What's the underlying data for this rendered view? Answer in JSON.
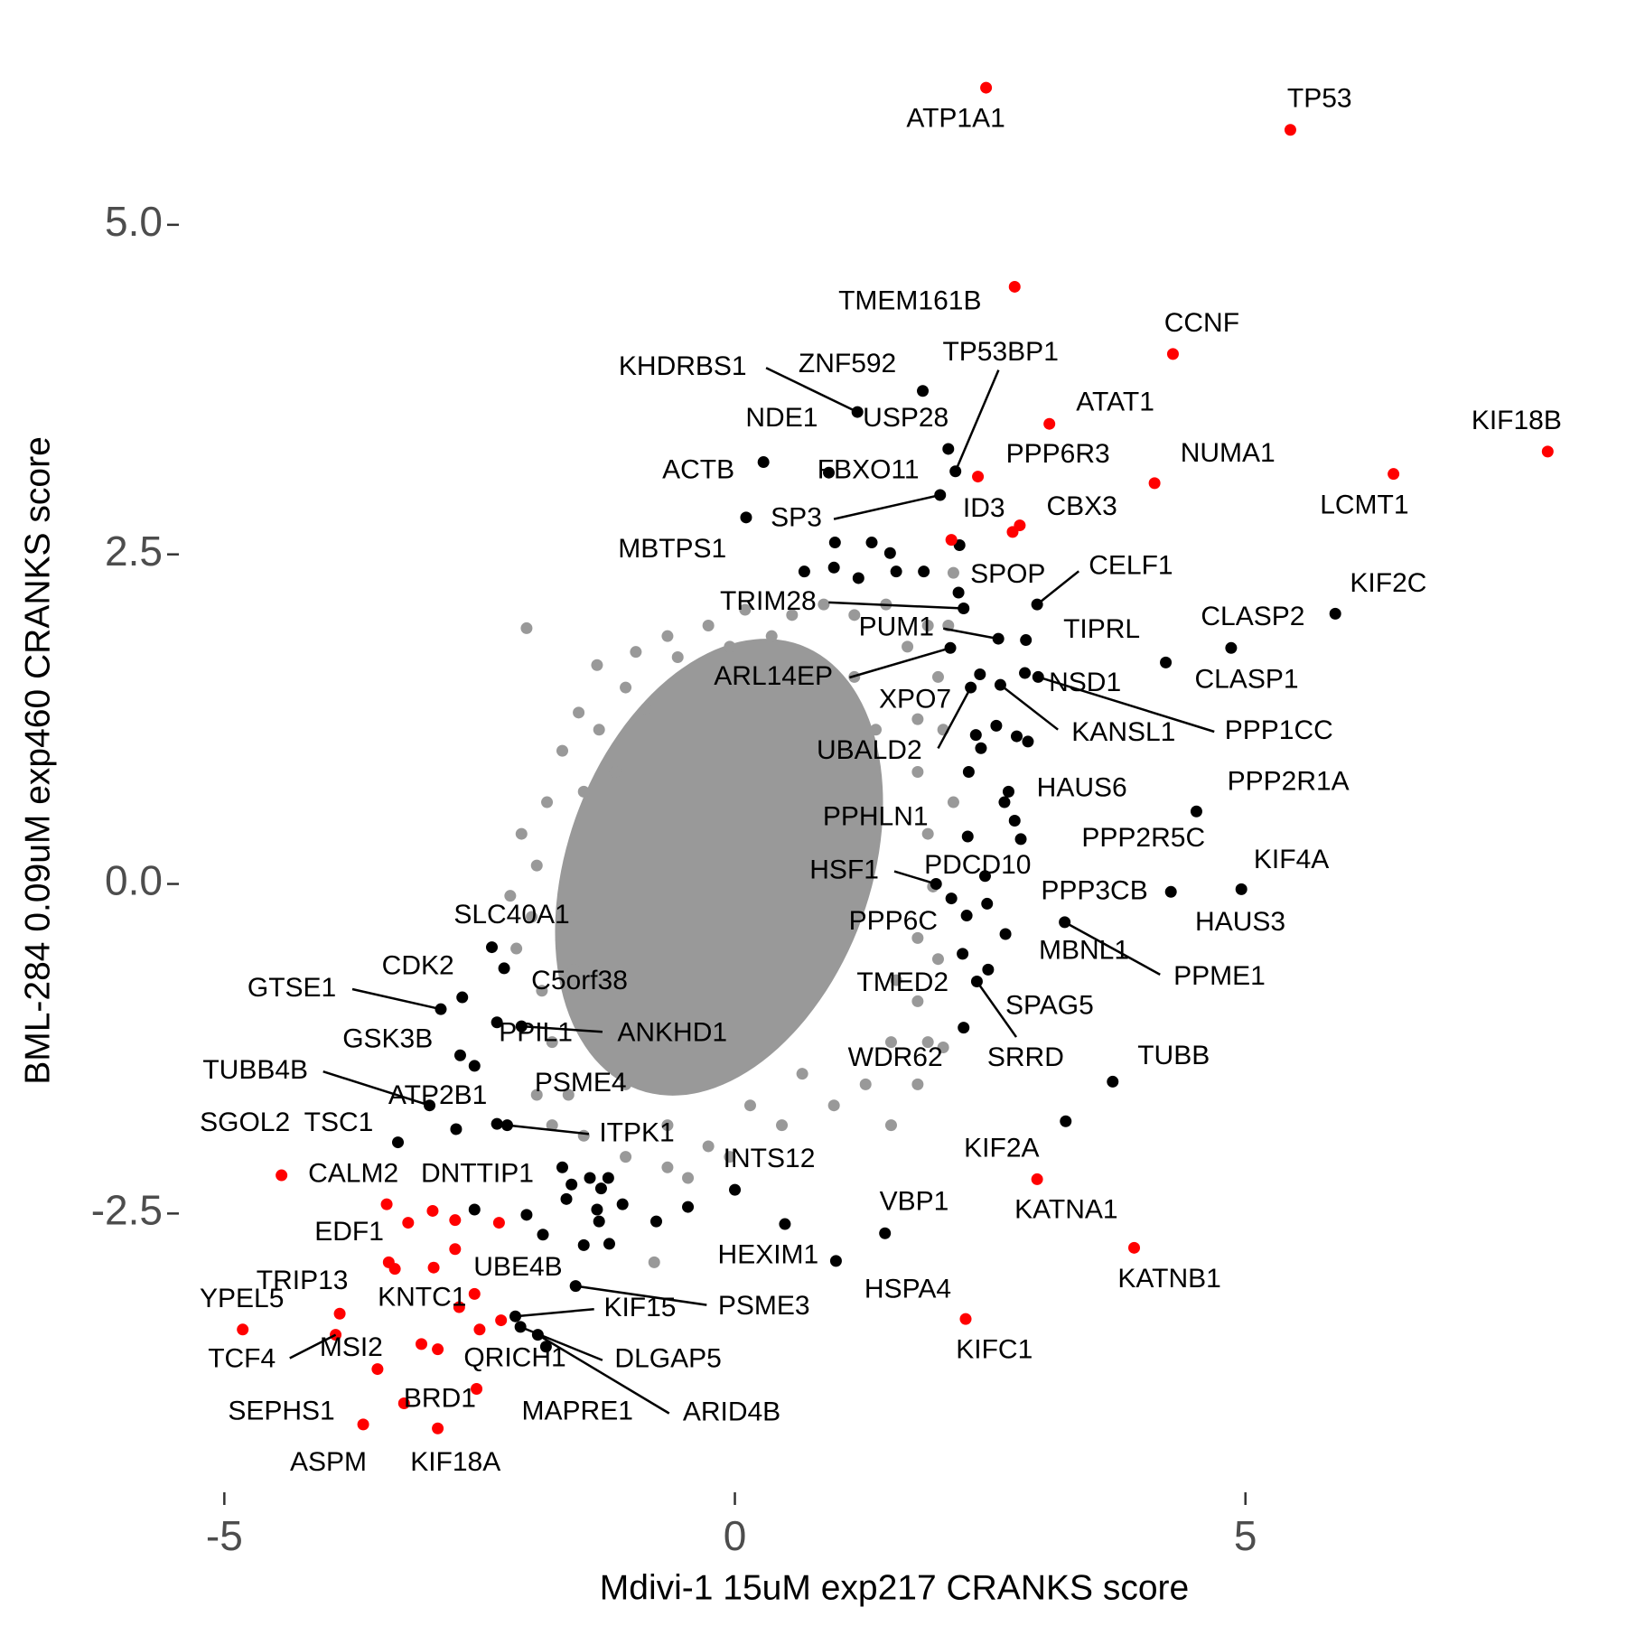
{
  "chart_data": {
    "type": "scatter",
    "x_label": "Mdivi-1 15uM exp217 CRANKS score",
    "y_label": "BML-284 0.09uM exp460 CRANKS score",
    "xlim": [
      -5.41,
      8.32
    ],
    "ylim": [
      -4.56,
      6.39
    ],
    "xticks": [
      -5,
      0,
      5
    ],
    "yticks": [
      -2.5,
      {
        "value": 0,
        "label": "0.0"
      },
      2.5,
      {
        "value": 5,
        "label": "5.0"
      }
    ],
    "grid": false,
    "series": [
      {
        "color": "#999999",
        "x": [
          -2.04,
          -1.35,
          -1.53,
          -1.69,
          -1.84,
          -1.94,
          -1.99,
          -2.14,
          -1.89,
          -1.79,
          -1.63,
          -1.48,
          -1.07,
          -0.79,
          -0.66,
          -0.05,
          0.46,
          0.97,
          1.53,
          2.04,
          1.79,
          1.79,
          1.94,
          1.89,
          1.79,
          1.79,
          1.99,
          1.89,
          1.69,
          1.48,
          1.17,
          0.87,
          0.56,
          0.1,
          -0.26,
          -0.66,
          -0.97,
          -1.07,
          -1.33,
          2.14,
          2.09,
          2.04,
          2.14,
          1.53,
          -2.09,
          -2.2,
          -1.94,
          -1.79,
          -0.46,
          -0.26,
          0.15,
          0.66,
          1.28,
          1.58,
          -0.56,
          -0.05,
          0.36,
          0.56,
          -0.87,
          -1.17,
          -1.48,
          -1.63,
          -1.58,
          -1.38,
          -1.07,
          -0.66,
          1.79,
          1.89,
          1.99,
          1.38,
          1.17
        ],
        "y": [
          1.94,
          1.66,
          1.3,
          1.01,
          0.62,
          0.14,
          -0.25,
          -0.49,
          -0.81,
          -1.2,
          -1.6,
          -1.91,
          -2.07,
          -2.87,
          -2.15,
          -2.07,
          -1.83,
          -1.68,
          -1.83,
          -1.24,
          -0.89,
          -0.41,
          -0.02,
          0.38,
          0.85,
          1.25,
          1.57,
          1.96,
          1.8,
          2.12,
          2.04,
          2.12,
          2.04,
          2.08,
          1.96,
          1.88,
          1.76,
          1.49,
          1.17,
          2.36,
          1.96,
          1.17,
          0.62,
          -1.2,
          0.38,
          -0.09,
          -1.6,
          -1.83,
          -2.23,
          -1.99,
          -1.68,
          -1.44,
          -1.52,
          -0.73,
          1.72,
          1.8,
          1.88,
          1.64,
          1.33,
          0.85,
          0.7,
          -0.25,
          -0.65,
          -1.12,
          -1.52,
          -1.83,
          -1.52,
          -1.2,
          -0.57,
          1.17,
          1.57
        ]
      },
      {
        "color": "#000000",
        "x": [
          1.2,
          1.84,
          2.09,
          0.28,
          2.16,
          0.11,
          0.92,
          2.01,
          0.98,
          2.2,
          2.96,
          2.24,
          2.85,
          4.86,
          5.88,
          2.58,
          2.11,
          4.22,
          2.84,
          2.4,
          2.97,
          2.6,
          2.31,
          2.68,
          4.52,
          2.28,
          2.8,
          4.96,
          1.97,
          2.45,
          4.27,
          2.47,
          2.27,
          3.23,
          2.65,
          2.23,
          2.48,
          2.37,
          2.24,
          3.7,
          3.24,
          0.0,
          1.47,
          0.49,
          0.99,
          -2.38,
          -2.67,
          -2.26,
          -2.88,
          -2.33,
          -2.09,
          -2.69,
          -2.99,
          -2.73,
          -2.33,
          -2.23,
          -3.3,
          -1.56,
          -2.15,
          -2.1,
          -1.93,
          -1.85,
          0.97,
          1.21,
          1.34,
          1.52,
          1.58,
          1.85,
          0.68,
          2.19,
          2.36,
          2.56,
          2.76,
          2.87,
          2.41,
          2.29,
          2.64,
          2.74,
          2.12,
          -1.69,
          -1.42,
          -1.24,
          -1.6,
          -1.31,
          -1.65,
          -1.35,
          -1.1,
          -0.77,
          -0.46,
          -2.04,
          -1.88,
          -1.33,
          -1.23,
          -1.48,
          -2.55,
          -2.55
        ],
        "y": [
          3.58,
          3.74,
          3.3,
          3.2,
          3.13,
          2.78,
          3.12,
          2.95,
          2.59,
          2.57,
          2.12,
          2.09,
          1.85,
          1.79,
          2.05,
          1.86,
          1.79,
          1.68,
          1.6,
          1.59,
          1.57,
          1.51,
          1.49,
          0.7,
          0.55,
          0.36,
          0.34,
          -0.04,
          0.0,
          0.06,
          -0.06,
          -0.15,
          -0.24,
          -0.29,
          -0.38,
          -0.53,
          -0.65,
          -0.74,
          -1.09,
          -1.5,
          -1.8,
          -2.32,
          -2.65,
          -2.58,
          -2.86,
          -0.48,
          -0.86,
          -0.64,
          -0.95,
          -1.05,
          -1.08,
          -1.3,
          -1.68,
          -1.86,
          -1.82,
          -1.83,
          -1.96,
          -3.05,
          -3.28,
          -3.36,
          -3.42,
          -3.51,
          2.4,
          2.32,
          2.59,
          2.51,
          2.37,
          2.37,
          2.37,
          2.21,
          1.13,
          1.2,
          1.12,
          1.08,
          1.03,
          0.85,
          0.62,
          0.48,
          -0.11,
          -2.15,
          -2.23,
          -2.23,
          -2.28,
          -2.31,
          -2.39,
          -2.47,
          -2.43,
          -2.56,
          -2.45,
          -2.51,
          -2.66,
          -2.56,
          -2.73,
          -2.74,
          -2.47,
          -1.38
        ],
        "labels": [
          "KHDRBS1",
          "ZNF592",
          "USP28",
          "NDE1",
          "TP53BP1",
          "ACTB",
          "FBXO11",
          "SP3",
          "MBTPS1",
          "SPOP",
          "CELF1",
          "TRIM28",
          "TIPRL",
          "CLASP2",
          "KIF2C",
          "PUM1",
          "ARL14EP",
          "CLASP1",
          "NSD1",
          "XPO7",
          "PPP1CC",
          "KANSL1",
          "UBALD2",
          "HAUS6",
          "PPP2R1A",
          "PPHLN1",
          "PPP2R5C",
          "KIF4A",
          "HSF1",
          "PDCD10",
          "HAUS3",
          "PPP3CB",
          "PPP6C",
          "PPME1",
          "MBNL1",
          "TMED2",
          "SPAG5",
          "SRRD",
          "WDR62",
          "TUBB",
          "KIF2A",
          "INTS12",
          "VBP1",
          "HEXIM1",
          "HSPA4",
          "SLC40A1",
          "CDK2",
          "C5orf38",
          "GTSE1",
          "PPIL1",
          "ANKHD1",
          "GSK3B",
          "TUBB4B",
          "ATP2B1",
          "PSME4",
          "ITPK1",
          "TSC1",
          "PSME3",
          "KIF15",
          "DLGAP5",
          "ARID4B",
          "MAPRE1",
          null,
          null,
          null,
          null,
          null,
          null,
          null,
          null,
          null,
          null,
          null,
          null,
          null,
          null,
          null,
          null,
          null,
          null,
          null,
          null,
          null,
          null,
          null,
          null,
          null,
          null,
          null,
          null,
          null,
          null,
          null,
          null,
          null,
          null
        ]
      },
      {
        "color": "#ff0000",
        "x": [
          2.46,
          5.44,
          2.74,
          4.29,
          3.08,
          7.96,
          2.38,
          4.11,
          6.45,
          2.79,
          2.12,
          2.96,
          3.91,
          2.26,
          -4.44,
          -3.41,
          -2.31,
          -3.39,
          -2.55,
          -2.7,
          -3.87,
          -3.91,
          -4.82,
          -2.29,
          -3.07,
          -3.5,
          -3.24,
          -3.64,
          -2.91,
          2.72,
          -3.2,
          -2.96,
          -2.74,
          -2.74,
          -3.33,
          -2.95,
          -2.5,
          -2.91,
          -2.53
        ],
        "y": [
          6.04,
          5.72,
          4.53,
          4.02,
          3.49,
          3.28,
          3.09,
          3.04,
          3.11,
          2.72,
          2.61,
          -2.24,
          -2.76,
          -3.3,
          -2.21,
          -2.43,
          -2.57,
          -2.87,
          -3.11,
          -3.21,
          -3.26,
          -3.42,
          -3.38,
          -3.31,
          -3.49,
          -3.68,
          -3.94,
          -4.1,
          -4.13,
          2.67,
          -2.57,
          -2.48,
          -2.55,
          -2.77,
          -2.92,
          -2.91,
          -3.38,
          -3.53,
          -3.83
        ],
        "labels": [
          "ATP1A1",
          "TP53",
          "TMEM161B",
          "CCNF",
          "ATAT1",
          "KIF18B",
          "PPP6R3",
          "NUMA1",
          "LCMT1",
          "CBX3",
          "ID3",
          "KATNA1",
          "KATNB1",
          "KIFC1",
          "CALM2",
          "SGOL2",
          "DNTTIP1",
          "EDF1",
          "UBE4B",
          "KNTC1",
          "TRIP13",
          "TCF4",
          "YPEL5",
          "QRICH1",
          "MSI2",
          "SEPHS1",
          "BRD1",
          "ASPM",
          "KIF18A",
          null,
          null,
          null,
          null,
          null,
          null,
          null,
          null,
          null,
          null
        ]
      }
    ]
  }
}
